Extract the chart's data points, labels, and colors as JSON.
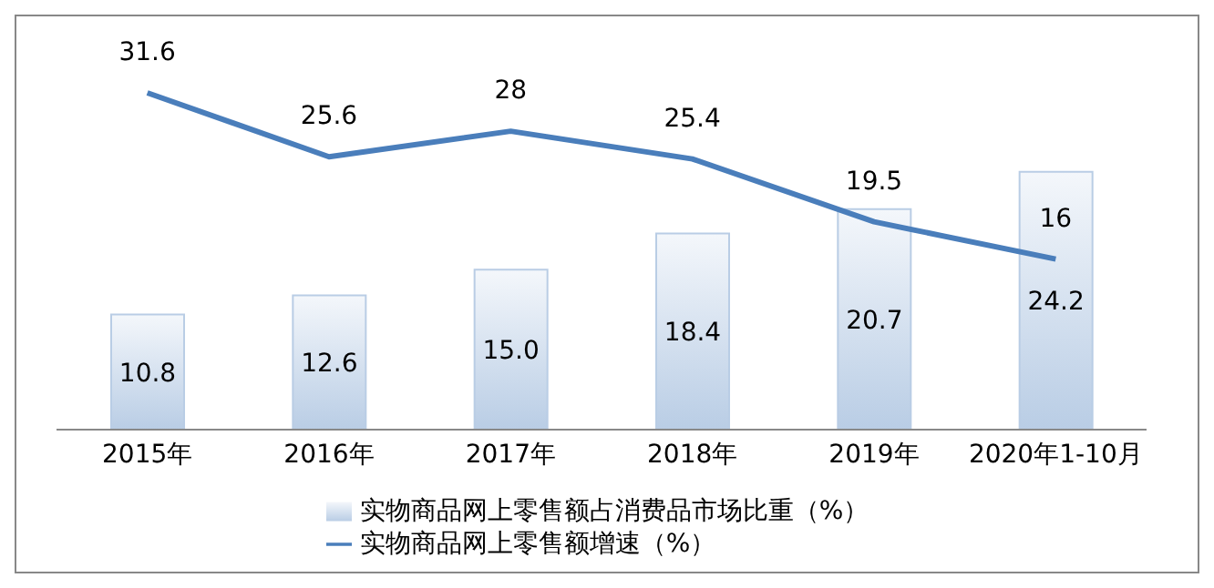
{
  "chart_data": {
    "type": "bar",
    "categories": [
      "2015年",
      "2016年",
      "2017年",
      "2018年",
      "2019年",
      "2020年1-10月"
    ],
    "series": [
      {
        "name": "实物商品网上零售额占消费品市场比重（%）",
        "color": "#b9cde5",
        "values": [
          10.8,
          12.6,
          15.0,
          18.4,
          20.7,
          24.2
        ],
        "value_labels": [
          "10.8",
          "12.6",
          "15.0",
          "18.4",
          "20.7",
          "24.2"
        ]
      },
      {
        "name": "实物商品网上零售额增速（%）",
        "type": "line",
        "color": "#4a7ebb",
        "values": [
          31.6,
          25.6,
          28,
          25.4,
          19.5,
          16
        ]
      }
    ],
    "data_labels": true,
    "legend": "bottom",
    "grid": false,
    "marker": "none"
  }
}
